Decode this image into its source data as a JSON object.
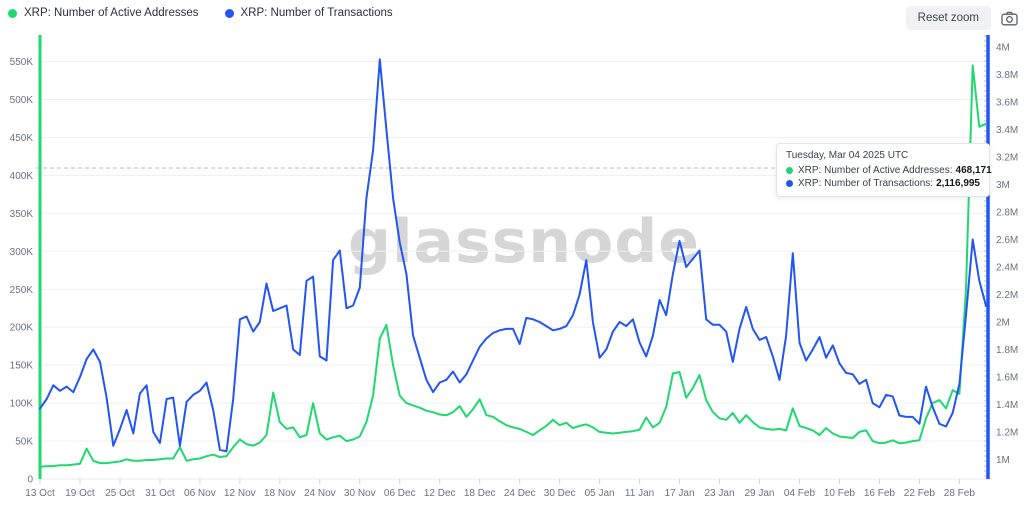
{
  "legend": {
    "items": [
      {
        "label": "XRP: Number of Active Addresses",
        "color": "#1fd96f"
      },
      {
        "label": "XRP: Number of Transactions",
        "color": "#2255f4"
      }
    ]
  },
  "toolbar": {
    "reset_zoom_label": "Reset zoom",
    "camera_icon": "camera"
  },
  "watermark": "glassnode",
  "tooltip": {
    "title": "Tuesday, Mar 04 2025 UTC",
    "rows": [
      {
        "label": "XRP: Number of Active Addresses:",
        "value": "468,171",
        "color": "#1fd96f"
      },
      {
        "label": "XRP: Number of Transactions:",
        "value": "2,116,995",
        "color": "#2255f4"
      }
    ]
  },
  "colors": {
    "active_addresses": "#1fd96f",
    "transactions": "#2255f4",
    "grid": "#eef0f3",
    "axis_label": "#6a7180",
    "crosshair": "#b6bdc9",
    "watermark": "#d6d6d6"
  },
  "chart_data": {
    "type": "line",
    "title": "",
    "x_range": "13 Oct 2024 - 04 Mar 2025 (daily)",
    "x_tick_labels": [
      "13 Oct",
      "19 Oct",
      "25 Oct",
      "31 Oct",
      "06 Nov",
      "12 Nov",
      "18 Nov",
      "24 Nov",
      "30 Nov",
      "06 Dec",
      "12 Dec",
      "18 Dec",
      "24 Dec",
      "30 Dec",
      "05 Jan",
      "11 Jan",
      "17 Jan",
      "23 Jan",
      "29 Jan",
      "04 Feb",
      "10 Feb",
      "16 Feb",
      "22 Feb",
      "28 Feb"
    ],
    "x_tick_day_indices": [
      0,
      6,
      12,
      18,
      24,
      30,
      36,
      42,
      48,
      54,
      60,
      66,
      72,
      78,
      84,
      90,
      96,
      102,
      108,
      114,
      120,
      126,
      132,
      138
    ],
    "left_axis": {
      "unit": "addresses",
      "tick_labels": [
        "0",
        "50K",
        "100K",
        "150K",
        "200K",
        "250K",
        "300K",
        "350K",
        "400K",
        "450K",
        "500K",
        "550K"
      ],
      "tick_values_k": [
        0,
        50,
        100,
        150,
        200,
        250,
        300,
        350,
        400,
        450,
        500,
        550
      ],
      "max_k": 585
    },
    "right_axis": {
      "unit": "transactions",
      "tick_labels": [
        "1M",
        "1.2M",
        "1.4M",
        "1.6M",
        "1.8M",
        "2M",
        "2.2M",
        "2.4M",
        "2.6M",
        "2.8M",
        "3M",
        "3.2M",
        "3.4M",
        "3.6M",
        "3.8M",
        "4M"
      ],
      "tick_values_m": [
        1.0,
        1.2,
        1.4,
        1.6,
        1.8,
        2.0,
        2.2,
        2.4,
        2.6,
        2.8,
        3.0,
        3.2,
        3.4,
        3.6,
        3.8,
        4.0
      ]
    },
    "series": [
      {
        "name": "XRP: Number of Active Addresses",
        "axis": "left",
        "color": "#1fd96f",
        "unit": "thousands",
        "values": [
          16,
          17,
          17,
          18,
          18,
          19,
          20,
          40,
          24,
          21,
          21,
          22,
          23,
          26,
          24,
          24,
          25,
          25,
          26,
          27,
          27,
          42,
          24,
          26,
          27,
          30,
          32,
          29,
          30,
          42,
          52,
          46,
          44,
          48,
          58,
          114,
          75,
          66,
          68,
          55,
          58,
          100,
          60,
          52,
          55,
          57,
          50,
          52,
          56,
          75,
          110,
          185,
          203,
          150,
          110,
          100,
          97,
          94,
          90,
          88,
          85,
          84,
          88,
          96,
          82,
          92,
          105,
          84,
          82,
          76,
          71,
          68,
          66,
          62,
          58,
          64,
          70,
          78,
          71,
          74,
          67,
          70,
          72,
          68,
          62,
          61,
          60,
          61,
          62,
          63,
          65,
          81,
          68,
          74,
          95,
          139,
          141,
          107,
          120,
          137,
          104,
          88,
          80,
          78,
          87,
          74,
          84,
          75,
          68,
          66,
          65,
          66,
          64,
          93,
          70,
          67,
          64,
          58,
          67,
          60,
          56,
          55,
          54,
          62,
          64,
          50,
          47,
          48,
          51,
          47,
          48,
          50,
          51,
          80,
          100,
          104,
          93,
          117,
          112,
          250,
          545,
          464,
          468.171
        ]
      },
      {
        "name": "XRP: Number of Transactions",
        "axis": "right",
        "color": "#2255f4",
        "unit": "millions",
        "values": [
          1.37,
          1.44,
          1.54,
          1.5,
          1.53,
          1.49,
          1.6,
          1.73,
          1.8,
          1.71,
          1.45,
          1.1,
          1.22,
          1.36,
          1.19,
          1.48,
          1.54,
          1.2,
          1.12,
          1.44,
          1.45,
          1.1,
          1.42,
          1.47,
          1.5,
          1.56,
          1.36,
          1.07,
          1.06,
          1.44,
          2.02,
          2.04,
          1.93,
          2.0,
          2.28,
          2.08,
          2.1,
          2.12,
          1.8,
          1.76,
          2.3,
          2.33,
          1.75,
          1.72,
          2.45,
          2.52,
          2.1,
          2.12,
          2.25,
          2.9,
          3.25,
          3.91,
          3.4,
          2.9,
          2.58,
          2.35,
          1.9,
          1.74,
          1.58,
          1.49,
          1.56,
          1.58,
          1.64,
          1.56,
          1.62,
          1.72,
          1.82,
          1.88,
          1.92,
          1.94,
          1.95,
          1.95,
          1.84,
          2.03,
          2.02,
          2.0,
          1.97,
          1.94,
          1.95,
          1.97,
          2.05,
          2.2,
          2.45,
          2.0,
          1.74,
          1.8,
          1.93,
          2.0,
          1.97,
          2.02,
          1.85,
          1.75,
          1.9,
          2.16,
          2.05,
          2.35,
          2.59,
          2.4,
          2.46,
          2.52,
          2.02,
          1.98,
          1.98,
          1.93,
          1.71,
          1.95,
          2.11,
          1.95,
          1.87,
          1.89,
          1.75,
          1.58,
          1.9,
          2.5,
          1.85,
          1.72,
          1.8,
          1.89,
          1.74,
          1.83,
          1.7,
          1.63,
          1.62,
          1.55,
          1.58,
          1.41,
          1.38,
          1.47,
          1.46,
          1.32,
          1.31,
          1.31,
          1.26,
          1.53,
          1.38,
          1.26,
          1.24,
          1.34,
          1.55,
          2.05,
          2.6,
          2.3,
          2.117
        ]
      }
    ],
    "current_point": {
      "date": "Tuesday, Mar 04 2025 UTC",
      "active_addresses": 468171,
      "transactions": 2116995
    },
    "legend_position": "top-left",
    "grid": "horizontal-only"
  }
}
